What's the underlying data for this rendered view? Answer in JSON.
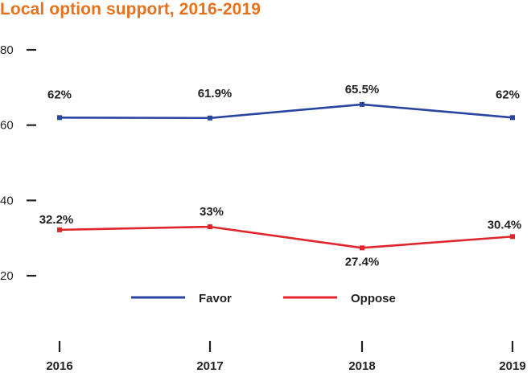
{
  "chart_data": {
    "type": "line",
    "title": "Local option support, 2016-2019",
    "categories": [
      "2016",
      "2017",
      "2018",
      "2019"
    ],
    "series": [
      {
        "name": "Favor",
        "color": "#2a45a0",
        "values": [
          62,
          61.9,
          65.5,
          62
        ],
        "labels": [
          "62%",
          "61.9%",
          "65.5%",
          "62%"
        ]
      },
      {
        "name": "Oppose",
        "color": "#e0262c",
        "values": [
          32.2,
          33,
          27.4,
          30.4
        ],
        "labels": [
          "32.2%",
          "33%",
          "27.4%",
          "30.4%"
        ]
      }
    ],
    "yticks": [
      "20",
      "40",
      "60",
      "80"
    ],
    "ylim": [
      0,
      80
    ],
    "legend_position": "bottom-center",
    "xlabel": "",
    "ylabel": ""
  }
}
